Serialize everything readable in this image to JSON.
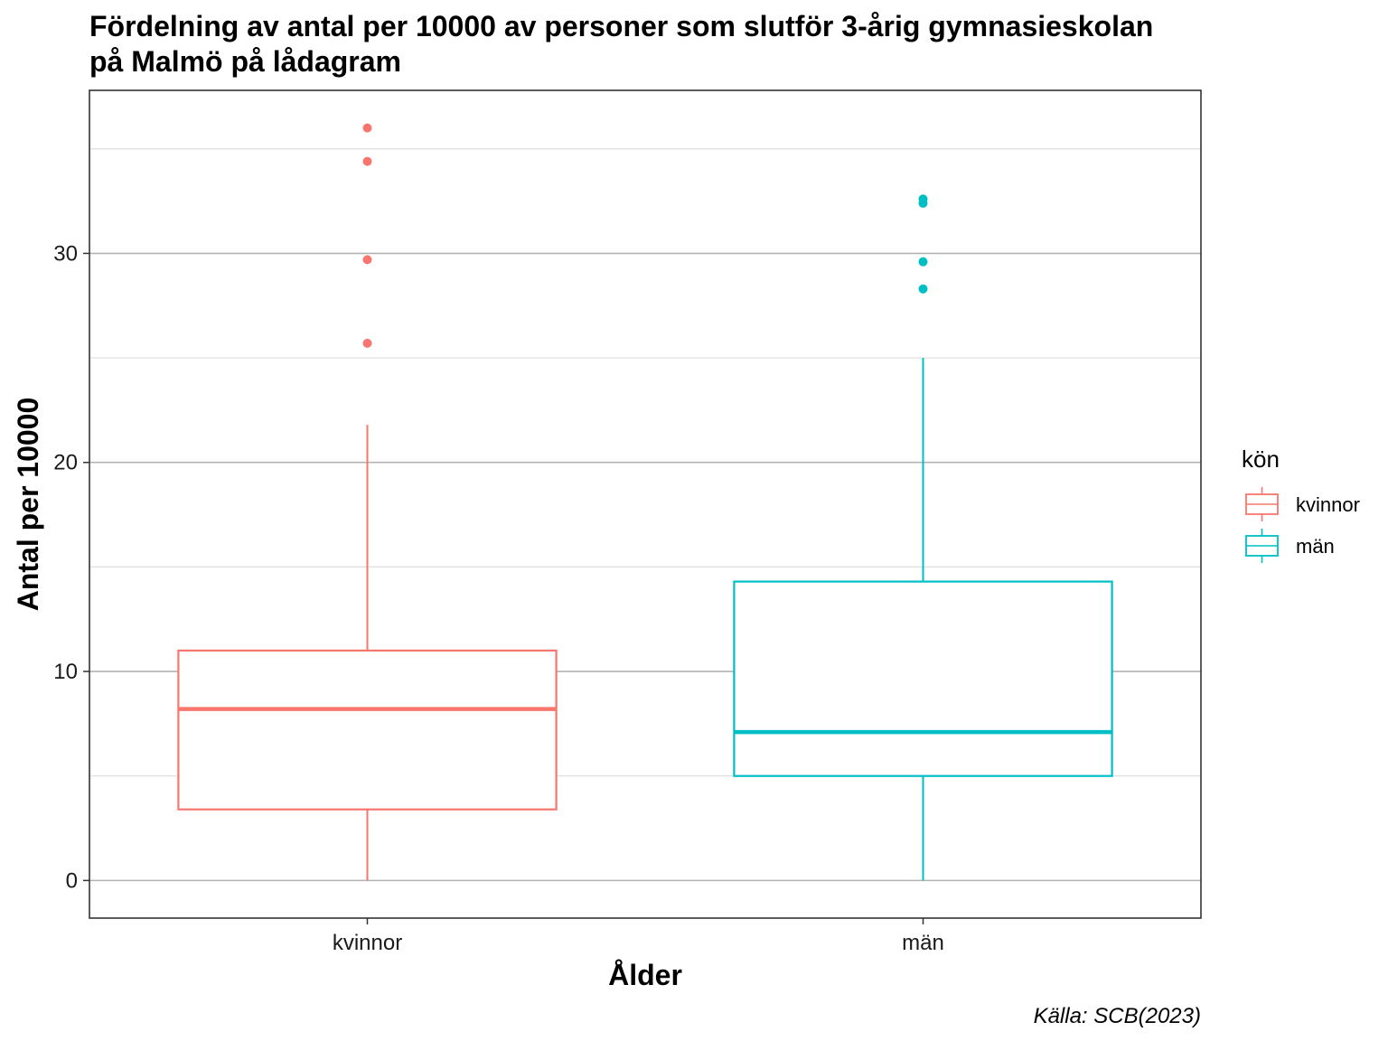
{
  "chart_data": {
    "type": "boxplot",
    "title_line1": "Fördelning av antal per 10000 av personer som slutför 3-årig gymnasieskolan",
    "title_line2": "på Malmö på lådagram",
    "xlabel": "Ålder",
    "ylabel": "Antal per 10000",
    "caption": "Källa: SCB(2023)",
    "ylim": [
      -1.8,
      37.8
    ],
    "yticks": [
      0,
      10,
      20,
      30
    ],
    "yticks_minor": [
      5,
      15,
      25,
      35
    ],
    "grid": true,
    "legend": {
      "title": "kön",
      "position": "right"
    },
    "categories": [
      "kvinnor",
      "män"
    ],
    "series": [
      {
        "name": "kvinnor",
        "color": "#F8766D",
        "min": 0,
        "q1": 3.4,
        "median": 8.2,
        "q3": 11,
        "max": 21.8,
        "outliers": [
          25.7,
          29.7,
          34.4,
          36
        ]
      },
      {
        "name": "män",
        "color": "#00BFC4",
        "min": 0,
        "q1": 5,
        "median": 7.1,
        "q3": 14.3,
        "max": 25,
        "outliers": [
          28.3,
          29.6,
          32.4,
          32.6
        ]
      }
    ]
  }
}
